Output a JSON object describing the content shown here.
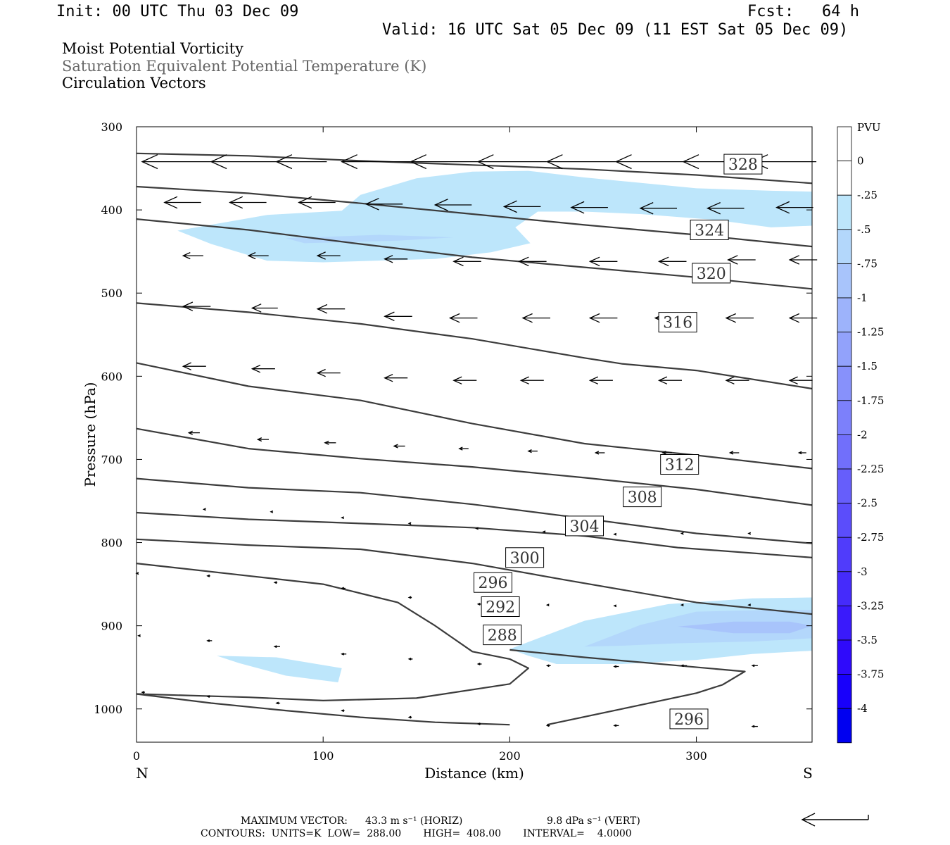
{
  "header": {
    "init": "Init: 00 UTC Thu 03 Dec 09",
    "fcst": "Fcst:   64 h",
    "valid": "Valid: 16 UTC Sat 05 Dec 09 (11 EST Sat 05 Dec 09)",
    "title_lines": [
      "Moist Potential Vorticity",
      "Saturation Equivalent Potential Temperature (K)",
      "Circulation Vectors"
    ],
    "title_colors": [
      "#000000",
      "#666666",
      "#000000"
    ]
  },
  "footer": {
    "max_vector_label": "MAXIMUM VECTOR:",
    "max_vector_horiz": "43.3 m s⁻¹ (HORIZ)",
    "max_vector_vert": "9.8 dPa s⁻¹ (VERT)",
    "contours_line": "CONTOURS:  UNITS=K  LOW=  288.00       HIGH=  408.00       INTERVAL=    4.0000"
  },
  "chart_data": {
    "type": "cross-section",
    "xlabel": "Distance (km)",
    "ylabel": "Pressure (hPa)",
    "x_ticks": [
      0,
      100,
      200,
      300
    ],
    "y_ticks": [
      300,
      400,
      500,
      600,
      700,
      800,
      900,
      1000
    ],
    "xlim": [
      0,
      362
    ],
    "ylim": [
      1040,
      300
    ],
    "endpoint_labels": {
      "left": "N",
      "right": "S"
    },
    "colorbar": {
      "unit": "PVU",
      "tick_labels": [
        "0",
        "-.25",
        "-.5",
        "-.75",
        "-1",
        "-1.25",
        "-1.5",
        "-1.75",
        "-2",
        "-2.25",
        "-2.5",
        "-2.75",
        "-3",
        "-3.25",
        "-3.5",
        "-3.75",
        "-4"
      ],
      "colors": [
        "#ffffff",
        "#ffffff",
        "#bde6fb",
        "#b3d7fb",
        "#a8c4fb",
        "#9db3fb",
        "#92a2fb",
        "#8791fb",
        "#7c80fb",
        "#716ffb",
        "#665efb",
        "#5b4dfb",
        "#503cfb",
        "#452bfb",
        "#3a1afb",
        "#2f0afb",
        "#1800fb",
        "#0000f0"
      ]
    },
    "theta_e_contours": [
      {
        "label": "328",
        "points": [
          [
            0,
            332
          ],
          [
            60,
            335
          ],
          [
            120,
            341
          ],
          [
            180,
            346
          ],
          [
            240,
            351
          ],
          [
            300,
            358
          ],
          [
            362,
            368
          ]
        ],
        "label_pos": [
          325,
          345
        ]
      },
      {
        "label": "324",
        "points": [
          [
            0,
            372
          ],
          [
            60,
            380
          ],
          [
            120,
            392
          ],
          [
            180,
            405
          ],
          [
            240,
            418
          ],
          [
            300,
            430
          ],
          [
            362,
            444
          ]
        ],
        "label_pos": [
          307,
          424
        ]
      },
      {
        "label": "320",
        "points": [
          [
            0,
            411
          ],
          [
            60,
            424
          ],
          [
            120,
            441
          ],
          [
            180,
            457
          ],
          [
            240,
            469
          ],
          [
            300,
            481
          ],
          [
            362,
            495
          ]
        ],
        "label_pos": [
          308,
          476
        ]
      },
      {
        "label": "316",
        "points": [
          [
            0,
            512
          ],
          [
            60,
            523
          ],
          [
            120,
            537
          ],
          [
            180,
            555
          ],
          [
            240,
            578
          ],
          [
            260,
            585
          ],
          [
            300,
            593
          ],
          [
            362,
            615
          ]
        ],
        "label_pos": [
          290,
          535
        ]
      },
      {
        "label": "312",
        "points": [
          [
            0,
            584
          ],
          [
            60,
            612
          ],
          [
            120,
            629
          ],
          [
            180,
            657
          ],
          [
            240,
            681
          ],
          [
            300,
            695
          ],
          [
            362,
            711
          ]
        ],
        "label_pos": [
          291,
          706
        ]
      },
      {
        "label": "308",
        "points": [
          [
            0,
            663
          ],
          [
            60,
            687
          ],
          [
            120,
            699
          ],
          [
            180,
            709
          ],
          [
            240,
            722
          ],
          [
            300,
            736
          ],
          [
            362,
            755
          ]
        ],
        "label_pos": [
          271,
          745
        ]
      },
      {
        "label": "304",
        "points": [
          [
            0,
            723
          ],
          [
            60,
            734
          ],
          [
            120,
            740
          ],
          [
            180,
            754
          ],
          [
            240,
            771
          ],
          [
            300,
            789
          ],
          [
            362,
            801
          ]
        ],
        "label_pos": [
          240,
          780
        ]
      },
      {
        "label": "300",
        "points": [
          [
            0,
            764
          ],
          [
            60,
            772
          ],
          [
            120,
            777
          ],
          [
            180,
            782
          ],
          [
            240,
            792
          ],
          [
            290,
            806
          ],
          [
            362,
            818
          ]
        ],
        "label_pos": [
          208,
          818
        ]
      },
      {
        "label": "296",
        "points": [
          [
            0,
            796
          ],
          [
            60,
            803
          ],
          [
            120,
            808
          ],
          [
            180,
            825
          ],
          [
            230,
            845
          ],
          [
            300,
            872
          ],
          [
            362,
            886
          ]
        ],
        "label_pos": [
          191,
          848
        ]
      },
      {
        "label": "292",
        "points": [
          [
            0,
            825
          ],
          [
            60,
            840
          ],
          [
            100,
            850
          ],
          [
            140,
            872
          ],
          [
            160,
            900
          ],
          [
            180,
            931
          ],
          [
            200,
            940
          ],
          [
            210,
            951
          ],
          [
            200,
            970
          ],
          [
            150,
            987
          ],
          [
            100,
            990
          ],
          [
            60,
            986
          ],
          [
            0,
            982
          ]
        ],
        "label_pos": [
          195,
          877
        ]
      },
      {
        "label": "288",
        "points": [
          [
            0,
            982
          ],
          [
            40,
            993
          ],
          [
            80,
            1002
          ],
          [
            120,
            1010
          ],
          [
            160,
            1016
          ],
          [
            200,
            1019
          ]
        ],
        "label_pos": [
          196,
          911
        ]
      },
      {
        "label": "296",
        "points": [
          [
            220,
            1019
          ],
          [
            260,
            1000
          ],
          [
            300,
            981
          ],
          [
            314,
            971
          ],
          [
            326,
            955
          ],
          [
            240,
            938
          ],
          [
            200,
            929
          ]
        ],
        "label_pos": [
          296,
          1012
        ]
      }
    ],
    "mpv_regions": [
      {
        "level": "-.25",
        "points": [
          [
            22,
            425
          ],
          [
            70,
            406
          ],
          [
            110,
            401
          ],
          [
            120,
            382
          ],
          [
            150,
            362
          ],
          [
            180,
            354
          ],
          [
            210,
            353
          ],
          [
            240,
            361
          ],
          [
            300,
            374
          ],
          [
            340,
            377
          ],
          [
            362,
            378
          ],
          [
            362,
            419
          ],
          [
            340,
            421
          ],
          [
            310,
            412
          ],
          [
            270,
            405
          ],
          [
            240,
            402
          ],
          [
            215,
            402
          ],
          [
            203,
            421
          ],
          [
            211,
            440
          ],
          [
            190,
            451
          ],
          [
            160,
            459
          ],
          [
            100,
            463
          ],
          [
            70,
            461
          ],
          [
            40,
            441
          ]
        ]
      },
      {
        "level": "-.5",
        "points": [
          [
            80,
            434
          ],
          [
            130,
            430
          ],
          [
            170,
            433
          ],
          [
            140,
            437
          ],
          [
            90,
            440
          ]
        ]
      },
      {
        "level": "-.25",
        "points": [
          [
            200,
            928
          ],
          [
            240,
            894
          ],
          [
            285,
            874
          ],
          [
            330,
            867
          ],
          [
            362,
            866
          ],
          [
            362,
            930
          ],
          [
            330,
            934
          ],
          [
            300,
            941
          ],
          [
            260,
            946
          ],
          [
            225,
            946
          ],
          [
            210,
            936
          ]
        ]
      },
      {
        "level": "-.5",
        "points": [
          [
            240,
            925
          ],
          [
            270,
            899
          ],
          [
            300,
            883
          ],
          [
            340,
            881
          ],
          [
            362,
            881
          ],
          [
            362,
            915
          ],
          [
            330,
            919
          ],
          [
            290,
            921
          ],
          [
            260,
            924
          ]
        ]
      },
      {
        "level": "-.75",
        "points": [
          [
            290,
            901
          ],
          [
            320,
            895
          ],
          [
            350,
            895
          ],
          [
            362,
            900
          ],
          [
            350,
            909
          ],
          [
            320,
            909
          ]
        ]
      },
      {
        "level": "-.25",
        "points": [
          [
            43,
            936
          ],
          [
            75,
            938
          ],
          [
            110,
            951
          ],
          [
            108,
            968
          ],
          [
            80,
            960
          ],
          [
            55,
            945
          ]
        ]
      }
    ],
    "vectors": {
      "note": "circulation vectors: x (km), pressure (hPa), length factor relative to maximum vector",
      "points": [
        [
          3,
          342,
          0.75
        ],
        [
          40,
          342,
          0.75
        ],
        [
          75,
          342,
          0.55
        ],
        [
          110,
          342,
          0.75
        ],
        [
          147,
          342,
          0.75
        ],
        [
          183,
          342,
          0.75
        ],
        [
          220,
          342,
          0.75
        ],
        [
          257,
          342,
          0.75
        ],
        [
          293,
          342,
          0.7
        ],
        [
          330,
          342,
          0.7
        ],
        [
          15,
          391,
          0.4
        ],
        [
          50,
          391,
          0.4
        ],
        [
          87,
          391,
          0.4
        ],
        [
          123,
          393,
          0.4
        ],
        [
          160,
          394,
          0.4
        ],
        [
          197,
          396,
          0.4
        ],
        [
          233,
          397,
          0.4
        ],
        [
          270,
          398,
          0.4
        ],
        [
          306,
          398,
          0.4
        ],
        [
          343,
          397,
          0.4
        ],
        [
          25,
          455,
          0.22
        ],
        [
          60,
          455,
          0.22
        ],
        [
          97,
          455,
          0.25
        ],
        [
          133,
          459,
          0.25
        ],
        [
          170,
          462,
          0.3
        ],
        [
          205,
          462,
          0.3
        ],
        [
          243,
          462,
          0.3
        ],
        [
          280,
          462,
          0.3
        ],
        [
          317,
          460,
          0.3
        ],
        [
          350,
          460,
          0.3
        ],
        [
          25,
          516,
          0.3
        ],
        [
          62,
          518,
          0.28
        ],
        [
          97,
          519,
          0.3
        ],
        [
          133,
          528,
          0.3
        ],
        [
          168,
          530,
          0.3
        ],
        [
          207,
          530,
          0.3
        ],
        [
          243,
          530,
          0.3
        ],
        [
          278,
          530,
          0.3
        ],
        [
          316,
          530,
          0.3
        ],
        [
          350,
          530,
          0.3
        ],
        [
          25,
          588,
          0.25
        ],
        [
          62,
          591,
          0.25
        ],
        [
          97,
          596,
          0.25
        ],
        [
          133,
          602,
          0.25
        ],
        [
          170,
          605,
          0.25
        ],
        [
          206,
          605,
          0.25
        ],
        [
          243,
          605,
          0.25
        ],
        [
          280,
          605,
          0.25
        ],
        [
          316,
          605,
          0.25
        ],
        [
          350,
          605,
          0.25
        ],
        [
          28,
          668,
          0.12
        ],
        [
          65,
          676,
          0.12
        ],
        [
          101,
          680,
          0.12
        ],
        [
          138,
          684,
          0.12
        ],
        [
          173,
          687,
          0.1
        ],
        [
          210,
          690,
          0.1
        ],
        [
          246,
          692,
          0.1
        ],
        [
          282,
          692,
          0.1
        ],
        [
          318,
          692,
          0.1
        ],
        [
          355,
          692,
          0.08
        ],
        [
          36,
          760,
          0.02
        ],
        [
          72,
          763,
          0.02
        ],
        [
          110,
          770,
          0.02
        ],
        [
          146,
          777,
          0.02
        ],
        [
          182,
          783,
          0.02
        ],
        [
          218,
          787,
          0.02
        ],
        [
          256,
          790,
          0.02
        ],
        [
          292,
          789,
          0.02
        ],
        [
          328,
          789,
          0.02
        ],
        [
          0,
          837,
          0.02
        ],
        [
          38,
          840,
          0.03
        ],
        [
          74,
          848,
          0.03
        ],
        [
          110,
          855,
          0.04
        ],
        [
          146,
          866,
          0.03
        ],
        [
          183,
          874,
          0.03
        ],
        [
          220,
          875,
          0.02
        ],
        [
          256,
          876,
          0.02
        ],
        [
          292,
          875,
          0.02
        ],
        [
          328,
          875,
          0.02
        ],
        [
          1,
          912,
          0.02
        ],
        [
          38,
          918,
          0.05
        ],
        [
          74,
          925,
          0.06
        ],
        [
          110,
          934,
          0.05
        ],
        [
          146,
          940,
          0.04
        ],
        [
          183,
          946,
          0.04
        ],
        [
          220,
          948,
          0.04
        ],
        [
          256,
          949,
          0.05
        ],
        [
          292,
          948,
          0.06
        ],
        [
          330,
          948,
          0.06
        ],
        [
          3,
          980,
          0.03
        ],
        [
          38,
          985,
          0.03
        ],
        [
          75,
          993,
          0.04
        ],
        [
          110,
          1002,
          0.03
        ],
        [
          146,
          1010,
          0.03
        ],
        [
          183,
          1018,
          0.03
        ],
        [
          220,
          1020,
          0.03
        ],
        [
          256,
          1020,
          0.05
        ],
        [
          292,
          1021,
          0.06
        ],
        [
          330,
          1021,
          0.06
        ]
      ]
    }
  }
}
